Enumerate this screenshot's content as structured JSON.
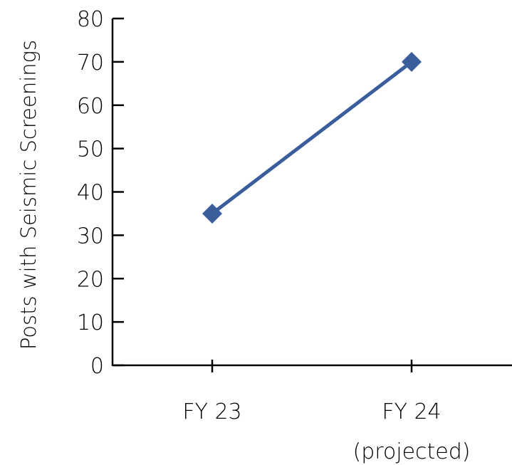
{
  "chart_data": {
    "type": "line",
    "categories": [
      [
        "FY 23"
      ],
      [
        "FY 24",
        "(projected)"
      ]
    ],
    "series": [
      {
        "values": [
          35,
          70
        ],
        "color": "#3a5e9c",
        "marker": "diamond"
      }
    ],
    "title": "",
    "xlabel": "",
    "ylabel": "Posts with Seismic Screenings",
    "ylim": [
      0,
      80
    ],
    "yticks": [
      0,
      10,
      20,
      30,
      40,
      50,
      60,
      70,
      80
    ],
    "grid": false,
    "legend": "none",
    "axis_color": "#000000"
  }
}
